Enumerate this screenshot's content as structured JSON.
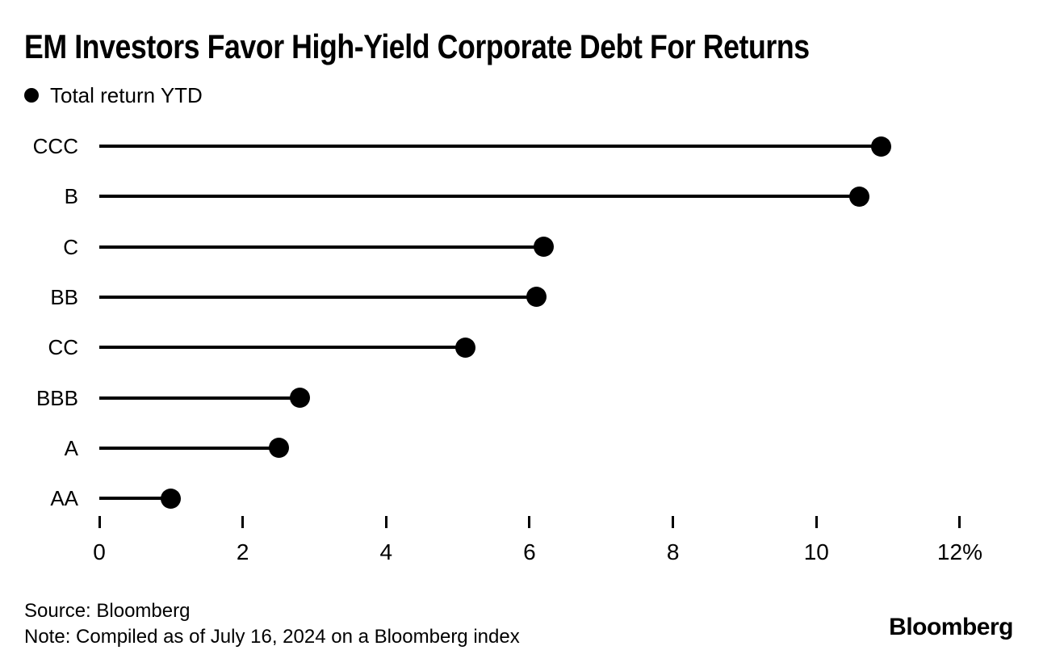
{
  "header": {
    "title": "EM Investors Favor High-Yield Corporate Debt For Returns"
  },
  "legend": {
    "label": "Total return YTD",
    "marker": "filled-circle-icon"
  },
  "chart_data": {
    "type": "lollipop",
    "orientation": "horizontal",
    "title": "EM Investors Favor High-Yield Corporate Debt For Returns",
    "series_name": "Total return YTD",
    "categories": [
      "CCC",
      "B",
      "C",
      "BB",
      "CC",
      "BBB",
      "A",
      "AA"
    ],
    "values": [
      10.9,
      10.6,
      6.2,
      6.1,
      5.1,
      2.8,
      2.5,
      1.0
    ],
    "unit": "%",
    "xlabel": "",
    "ylabel": "",
    "xlim": [
      0,
      12
    ],
    "x_tick_values": [
      0,
      2,
      4,
      6,
      8,
      10,
      12
    ],
    "x_tick_labels": [
      "0",
      "2",
      "4",
      "6",
      "8",
      "10",
      "12%"
    ],
    "grid": false,
    "legend_position": "top-left",
    "marker_color": "#000000",
    "background_color": "#ffffff"
  },
  "footer": {
    "source": "Source: Bloomberg",
    "note": "Note: Compiled as of July 16, 2024 on a Bloomberg index",
    "logo": "Bloomberg"
  }
}
